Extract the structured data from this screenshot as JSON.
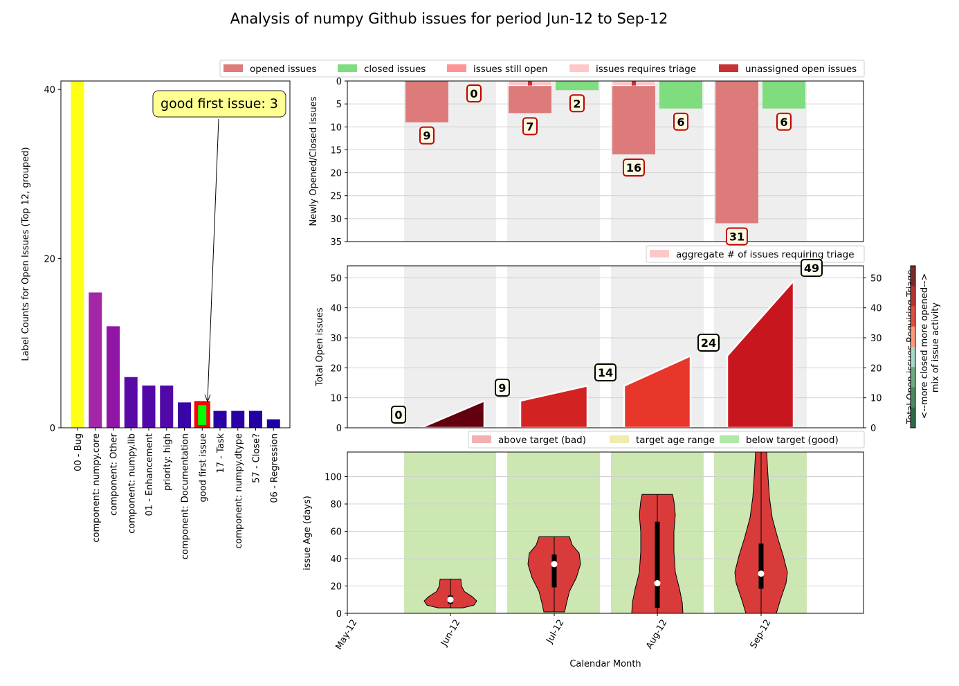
{
  "title": "Analysis of numpy Github issues for period Jun-12 to Sep-12",
  "colors": {
    "labels_bar": [
      "#ffff16",
      "#a326a7",
      "#9015a6",
      "#590aa6",
      "#5208a6",
      "#5008a6",
      "#3a05a6",
      "#00ff00",
      "#2a01a4",
      "#2a01a4",
      "#2501a4",
      "#1c00a2"
    ],
    "labels_highlight_edge": "#ff0000",
    "opened": "#dd7b7b",
    "closed": "#7fdd7f",
    "still_open": "#ff9494",
    "triage": "#ffc8c8",
    "unassigned": "#c83232",
    "month_shade": "#eeeeee",
    "target_good": "#cde7b3",
    "violin": "#d93b3a",
    "total_fill": [
      "#620010",
      "#d22222",
      "#e8362a",
      "#c8161e"
    ],
    "colorbar": [
      "#2e6b46",
      "#4a8a5c",
      "#70aa80",
      "#a8d8c8",
      "#ff9a7a",
      "#e05040",
      "#b83434",
      "#7a2a2a"
    ]
  },
  "chart_data": [
    {
      "type": "bar",
      "name": "label_counts",
      "categories": [
        "00 - Bug",
        "component: numpy.core",
        "component: Other",
        "component: numpy.lib",
        "01 - Enhancement",
        "priority: high",
        "component: Documentation",
        "good first issue",
        "17 - Task",
        "component: numpy.dtype",
        "57 - Close?",
        "06 - Regression"
      ],
      "values": [
        41,
        16,
        12,
        6,
        5,
        5,
        3,
        3,
        2,
        2,
        2,
        1
      ],
      "ylabel": "Label Counts for Open Issues (Top 12, grouped)",
      "yticks": [
        "0",
        "20",
        "40"
      ],
      "ylim": [
        0,
        41
      ],
      "highlight_index": 7,
      "annotation": "good first issue: 3"
    },
    {
      "type": "bar",
      "name": "opened_closed",
      "months": [
        "Jun-12",
        "Jul-12",
        "Aug-12",
        "Sep-12"
      ],
      "series": [
        {
          "name": "opened issues",
          "values": [
            9,
            7,
            16,
            31
          ]
        },
        {
          "name": "closed issues",
          "values": [
            0,
            2,
            6,
            6
          ]
        },
        {
          "name": "issues still open",
          "values": [
            0,
            1,
            1,
            0
          ]
        },
        {
          "name": "issues requires triage",
          "values": [
            0,
            1,
            1,
            0
          ]
        },
        {
          "name": "unassigned open issues",
          "values": [
            0,
            1,
            1,
            0
          ]
        }
      ],
      "opened_labels": [
        "9",
        "7",
        "16",
        "31"
      ],
      "closed_labels": [
        "0",
        "2",
        "6",
        "6"
      ],
      "ylabel": "Newly Opened/Closed issues",
      "yticks": [
        "0",
        "5",
        "10",
        "15",
        "20",
        "25",
        "30",
        "35"
      ],
      "ylim": [
        0,
        35
      ],
      "inverted": true
    },
    {
      "type": "area",
      "name": "total_open",
      "months": [
        "Jun-12",
        "Jul-12",
        "Aug-12",
        "Sep-12"
      ],
      "start_values": [
        0,
        9,
        14,
        24
      ],
      "end_values": [
        9,
        14,
        24,
        49
      ],
      "labels": [
        "0",
        "9",
        "14",
        "24",
        "49"
      ],
      "legend": "aggregate # of issues requiring triage",
      "ylabel": "Total Open issues",
      "ylabel_right": "Total Open issues Requiring Triage",
      "yticks": [
        "0",
        "10",
        "20",
        "30",
        "40",
        "50"
      ],
      "ylim": [
        0,
        54
      ],
      "colorbar_label_1": "<--more closed      more opened-->",
      "colorbar_label_2": "mix of issue activity"
    },
    {
      "type": "violin",
      "name": "issue_age",
      "months": [
        "Jun-12",
        "Jul-12",
        "Aug-12",
        "Sep-12"
      ],
      "min": [
        4,
        1,
        0,
        0
      ],
      "max": [
        25,
        56,
        87,
        118
      ],
      "median": [
        10,
        36,
        22,
        29
      ],
      "q1": [
        7,
        19,
        4,
        18
      ],
      "q3": [
        13,
        43,
        67,
        51
      ],
      "legend": [
        "above target (bad)",
        "target age range",
        "below target (good)"
      ],
      "legend_colors": [
        "#f4b0b0",
        "#f0ebb0",
        "#b0e8a8"
      ],
      "ylabel": "issue Age (days)",
      "xlabel": "Calendar Month",
      "xticks": [
        "May-12",
        "Jun-12",
        "Jul-12",
        "Aug-12",
        "Sep-12"
      ],
      "yticks": [
        "0",
        "20",
        "40",
        "60",
        "80",
        "100"
      ],
      "ylim": [
        0,
        118
      ]
    }
  ]
}
